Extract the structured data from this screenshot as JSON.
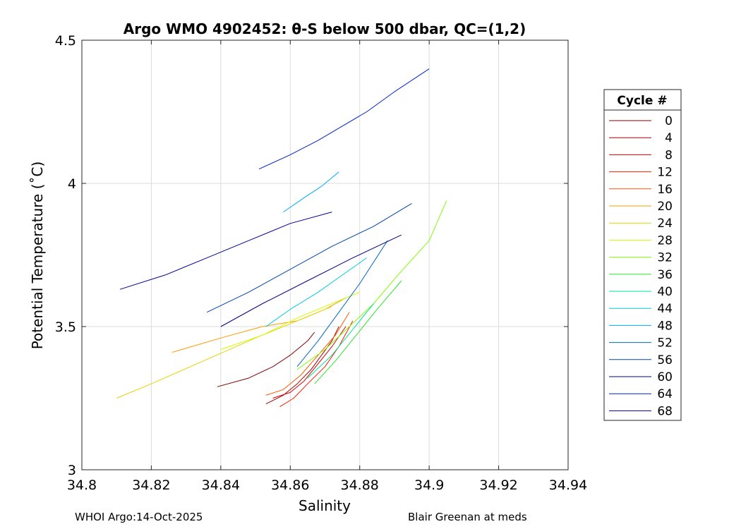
{
  "chart_data": {
    "type": "line",
    "title": "Argo WMO 4902452: θ-S below 500 dbar,  QC=(1,2)",
    "xlabel": "Salinity",
    "ylabel": "Potential Temperature (˚C)",
    "xlim": [
      34.8,
      34.94
    ],
    "ylim": [
      3,
      4.5
    ],
    "x_ticks": [
      34.8,
      34.82,
      34.84,
      34.86,
      34.88,
      34.9,
      34.92,
      34.94
    ],
    "x_tick_labels": [
      "34.8",
      "34.82",
      "34.84",
      "34.86",
      "34.88",
      "34.9",
      "34.92",
      "34.94"
    ],
    "y_ticks": [
      3,
      3.5,
      4,
      4.5
    ],
    "y_tick_labels": [
      "3",
      "3.5",
      "4",
      "4.5"
    ],
    "grid": true,
    "legend_title": "Cycle #",
    "legend_position": "right",
    "series": [
      {
        "name": "0",
        "color": "#800000",
        "points": [
          [
            34.839,
            3.29
          ],
          [
            34.848,
            3.32
          ],
          [
            34.855,
            3.36
          ],
          [
            34.86,
            3.4
          ],
          [
            34.865,
            3.45
          ],
          [
            34.867,
            3.48
          ]
        ]
      },
      {
        "name": "4",
        "color": "#a80000",
        "points": [
          [
            34.853,
            3.23
          ],
          [
            34.858,
            3.26
          ],
          [
            34.862,
            3.3
          ],
          [
            34.866,
            3.35
          ],
          [
            34.869,
            3.4
          ],
          [
            34.872,
            3.45
          ],
          [
            34.874,
            3.5
          ]
        ]
      },
      {
        "name": "8",
        "color": "#d40000",
        "points": [
          [
            34.855,
            3.25
          ],
          [
            34.86,
            3.27
          ],
          [
            34.864,
            3.31
          ],
          [
            34.868,
            3.37
          ],
          [
            34.872,
            3.43
          ],
          [
            34.876,
            3.5
          ]
        ]
      },
      {
        "name": "12",
        "color": "#ff1a00",
        "points": [
          [
            34.857,
            3.22
          ],
          [
            34.861,
            3.25
          ],
          [
            34.865,
            3.3
          ],
          [
            34.87,
            3.36
          ],
          [
            34.874,
            3.43
          ],
          [
            34.878,
            3.52
          ]
        ]
      },
      {
        "name": "16",
        "color": "#ff5500",
        "points": [
          [
            34.853,
            3.26
          ],
          [
            34.858,
            3.28
          ],
          [
            34.863,
            3.33
          ],
          [
            34.868,
            3.4
          ],
          [
            34.873,
            3.47
          ],
          [
            34.877,
            3.55
          ]
        ]
      },
      {
        "name": "20",
        "color": "#ff9900",
        "points": [
          [
            34.826,
            3.41
          ],
          [
            34.84,
            3.46
          ],
          [
            34.852,
            3.5
          ],
          [
            34.862,
            3.52
          ],
          [
            34.87,
            3.56
          ],
          [
            34.876,
            3.6
          ]
        ]
      },
      {
        "name": "24",
        "color": "#e6d300",
        "points": [
          [
            34.81,
            3.25
          ],
          [
            34.82,
            3.3
          ],
          [
            34.835,
            3.38
          ],
          [
            34.85,
            3.46
          ],
          [
            34.862,
            3.52
          ],
          [
            34.872,
            3.57
          ]
        ]
      },
      {
        "name": "28",
        "color": "#ccff00",
        "points": [
          [
            34.84,
            3.42
          ],
          [
            34.852,
            3.47
          ],
          [
            34.862,
            3.53
          ],
          [
            34.872,
            3.58
          ],
          [
            34.88,
            3.62
          ]
        ]
      },
      {
        "name": "32",
        "color": "#7fff00",
        "points": [
          [
            34.862,
            3.35
          ],
          [
            34.87,
            3.42
          ],
          [
            34.877,
            3.5
          ],
          [
            34.884,
            3.58
          ],
          [
            34.891,
            3.68
          ],
          [
            34.9,
            3.8
          ],
          [
            34.905,
            3.94
          ]
        ]
      },
      {
        "name": "36",
        "color": "#2ae62a",
        "points": [
          [
            34.867,
            3.3
          ],
          [
            34.873,
            3.38
          ],
          [
            34.879,
            3.47
          ],
          [
            34.885,
            3.56
          ],
          [
            34.892,
            3.66
          ]
        ]
      },
      {
        "name": "40",
        "color": "#00e699",
        "points": [
          [
            34.865,
            3.32
          ],
          [
            34.872,
            3.4
          ],
          [
            34.878,
            3.49
          ],
          [
            34.884,
            3.58
          ]
        ]
      },
      {
        "name": "44",
        "color": "#00ccdd",
        "points": [
          [
            34.853,
            3.5
          ],
          [
            34.86,
            3.56
          ],
          [
            34.868,
            3.62
          ],
          [
            34.875,
            3.68
          ],
          [
            34.882,
            3.74
          ]
        ]
      },
      {
        "name": "48",
        "color": "#00aaff",
        "points": [
          [
            34.858,
            3.9
          ],
          [
            34.864,
            3.95
          ],
          [
            34.869,
            3.99
          ],
          [
            34.874,
            4.04
          ]
        ]
      },
      {
        "name": "52",
        "color": "#0066cc",
        "points": [
          [
            34.862,
            3.36
          ],
          [
            34.868,
            3.45
          ],
          [
            34.874,
            3.55
          ],
          [
            34.88,
            3.65
          ],
          [
            34.888,
            3.8
          ]
        ]
      },
      {
        "name": "56",
        "color": "#0044aa",
        "points": [
          [
            34.836,
            3.55
          ],
          [
            34.848,
            3.62
          ],
          [
            34.86,
            3.7
          ],
          [
            34.872,
            3.78
          ],
          [
            34.884,
            3.85
          ],
          [
            34.895,
            3.93
          ]
        ]
      },
      {
        "name": "60",
        "color": "#000088",
        "points": [
          [
            34.84,
            3.5
          ],
          [
            34.852,
            3.58
          ],
          [
            34.865,
            3.66
          ],
          [
            34.878,
            3.74
          ],
          [
            34.892,
            3.82
          ]
        ]
      },
      {
        "name": "64",
        "color": "#0022cc",
        "points": [
          [
            34.851,
            4.05
          ],
          [
            34.86,
            4.1
          ],
          [
            34.868,
            4.15
          ],
          [
            34.875,
            4.2
          ],
          [
            34.882,
            4.25
          ],
          [
            34.89,
            4.32
          ],
          [
            34.9,
            4.4
          ]
        ]
      },
      {
        "name": "68",
        "color": "#000099",
        "points": [
          [
            34.811,
            3.63
          ],
          [
            34.824,
            3.68
          ],
          [
            34.836,
            3.74
          ],
          [
            34.848,
            3.8
          ],
          [
            34.86,
            3.86
          ],
          [
            34.872,
            3.9
          ]
        ]
      }
    ]
  },
  "footer": {
    "left": "WHOI Argo:14-Oct-2025",
    "right": "Blair Greenan at meds"
  }
}
